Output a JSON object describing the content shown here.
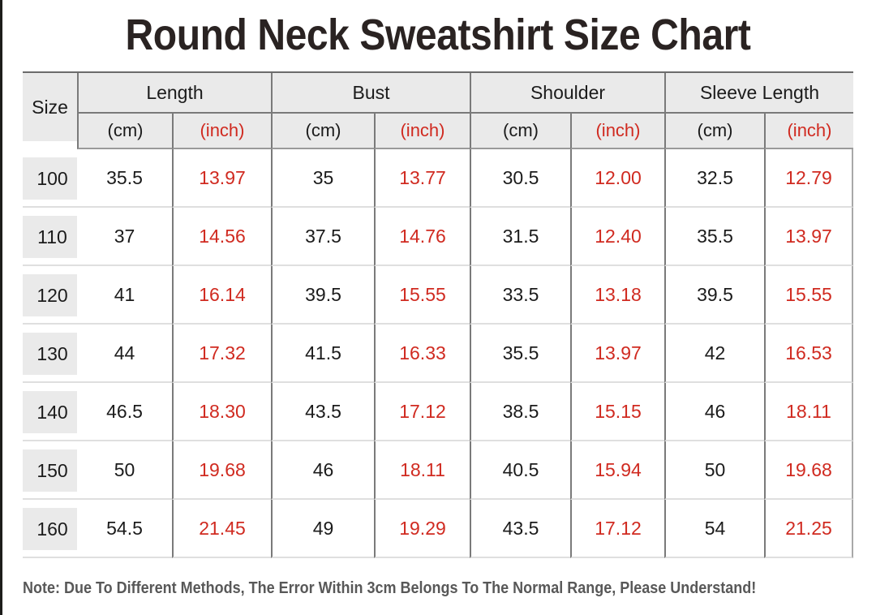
{
  "title": "Round Neck Sweatshirt Size Chart",
  "note": "Note: Due To Different Methods, The Error Within 3cm Belongs To The Normal Range, Please Understand!",
  "colors": {
    "accent_red": "#d02a20",
    "header_bg": "#eaeaea",
    "grid_line_dark": "#7a7a7a",
    "grid_line_light": "#dfdfdf",
    "text_dark": "#1b1b1b",
    "note_text": "#585858",
    "title_text": "#2a2322"
  },
  "table": {
    "size_header": "Size",
    "groups": [
      "Length",
      "Bust",
      "Shoulder",
      "Sleeve Length"
    ],
    "unit_cm": "(cm)",
    "unit_inch": "(inch)",
    "rows": [
      {
        "size": "100",
        "length_cm": "35.5",
        "length_inch": "13.97",
        "bust_cm": "35",
        "bust_inch": "13.77",
        "shoulder_cm": "30.5",
        "shoulder_inch": "12.00",
        "sleeve_cm": "32.5",
        "sleeve_inch": "12.79"
      },
      {
        "size": "110",
        "length_cm": "37",
        "length_inch": "14.56",
        "bust_cm": "37.5",
        "bust_inch": "14.76",
        "shoulder_cm": "31.5",
        "shoulder_inch": "12.40",
        "sleeve_cm": "35.5",
        "sleeve_inch": "13.97"
      },
      {
        "size": "120",
        "length_cm": "41",
        "length_inch": "16.14",
        "bust_cm": "39.5",
        "bust_inch": "15.55",
        "shoulder_cm": "33.5",
        "shoulder_inch": "13.18",
        "sleeve_cm": "39.5",
        "sleeve_inch": "15.55"
      },
      {
        "size": "130",
        "length_cm": "44",
        "length_inch": "17.32",
        "bust_cm": "41.5",
        "bust_inch": "16.33",
        "shoulder_cm": "35.5",
        "shoulder_inch": "13.97",
        "sleeve_cm": "42",
        "sleeve_inch": "16.53"
      },
      {
        "size": "140",
        "length_cm": "46.5",
        "length_inch": "18.30",
        "bust_cm": "43.5",
        "bust_inch": "17.12",
        "shoulder_cm": "38.5",
        "shoulder_inch": "15.15",
        "sleeve_cm": "46",
        "sleeve_inch": "18.11"
      },
      {
        "size": "150",
        "length_cm": "50",
        "length_inch": "19.68",
        "bust_cm": "46",
        "bust_inch": "18.11",
        "shoulder_cm": "40.5",
        "shoulder_inch": "15.94",
        "sleeve_cm": "50",
        "sleeve_inch": "19.68"
      },
      {
        "size": "160",
        "length_cm": "54.5",
        "length_inch": "21.45",
        "bust_cm": "49",
        "bust_inch": "19.29",
        "shoulder_cm": "43.5",
        "shoulder_inch": "17.12",
        "sleeve_cm": "54",
        "sleeve_inch": "21.25"
      }
    ]
  },
  "chart_data": {
    "type": "table",
    "title": "Round Neck Sweatshirt Size Chart",
    "columns": [
      "Size",
      "Length (cm)",
      "Length (inch)",
      "Bust (cm)",
      "Bust (inch)",
      "Shoulder (cm)",
      "Shoulder (inch)",
      "Sleeve Length (cm)",
      "Sleeve Length (inch)"
    ],
    "rows": [
      [
        100,
        35.5,
        13.97,
        35,
        13.77,
        30.5,
        12.0,
        32.5,
        12.79
      ],
      [
        110,
        37,
        14.56,
        37.5,
        14.76,
        31.5,
        12.4,
        35.5,
        13.97
      ],
      [
        120,
        41,
        16.14,
        39.5,
        15.55,
        33.5,
        13.18,
        39.5,
        15.55
      ],
      [
        130,
        44,
        17.32,
        41.5,
        16.33,
        35.5,
        13.97,
        42,
        16.53
      ],
      [
        140,
        46.5,
        18.3,
        43.5,
        17.12,
        38.5,
        15.15,
        46,
        18.11
      ],
      [
        150,
        50,
        19.68,
        46,
        18.11,
        40.5,
        15.94,
        50,
        19.68
      ],
      [
        160,
        54.5,
        21.45,
        49,
        19.29,
        43.5,
        17.12,
        54,
        21.25
      ]
    ],
    "note": "Note: Due To Different Methods, The Error Within 3cm Belongs To The Normal Range, Please Understand!"
  }
}
